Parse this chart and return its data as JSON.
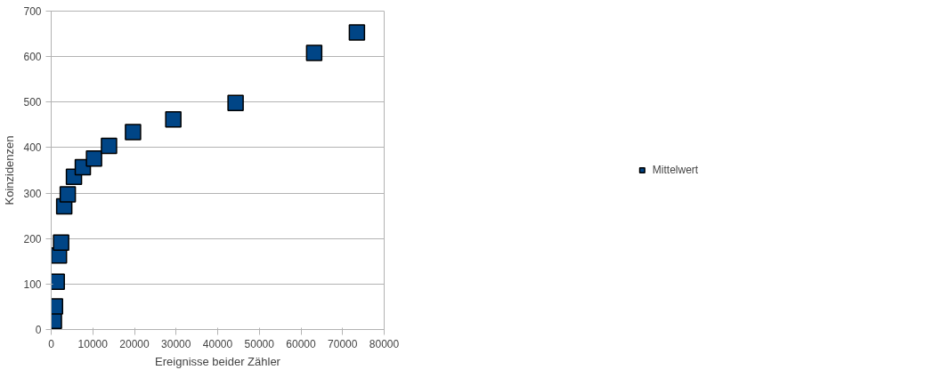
{
  "chart_data": {
    "type": "scatter",
    "xlabel": "Ereignisse beider Zähler",
    "ylabel": "Koinzidenzen",
    "x": [
      650,
      910,
      1330,
      1860,
      2380,
      3130,
      3980,
      5470,
      7600,
      10290,
      13890,
      19660,
      29340,
      44300,
      63180,
      73450
    ],
    "series": [
      {
        "name": "Mittelwert",
        "color": "#004586",
        "values": [
          19,
          51,
          105,
          163,
          191,
          271,
          297,
          336,
          357,
          376,
          404,
          434,
          462,
          498,
          608,
          653
        ]
      }
    ],
    "xlim": [
      0,
      80000
    ],
    "xticks": [
      0,
      10000,
      20000,
      30000,
      40000,
      50000,
      60000,
      70000,
      80000
    ],
    "ylim": [
      0,
      700
    ],
    "yticks": [
      0,
      100,
      200,
      300,
      400,
      500,
      600,
      700
    ],
    "grid": "y",
    "legend": "right",
    "marker": "square"
  }
}
